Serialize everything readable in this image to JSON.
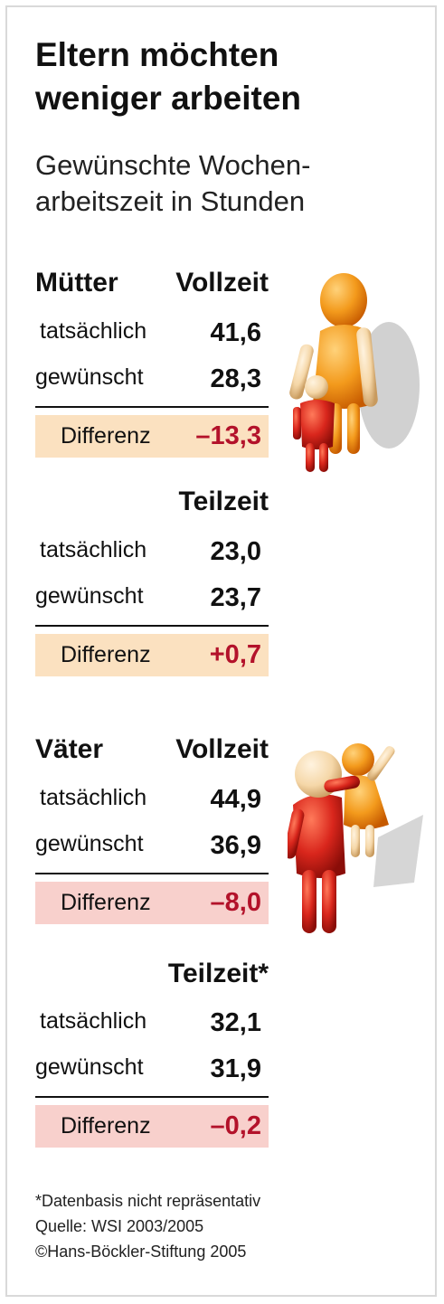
{
  "title_line1": "Eltern möchten",
  "title_line2": "weniger arbeiten",
  "subtitle_line1": "Gewünschte Wochen-",
  "subtitle_line2": "arbeitszeit in Stunden",
  "labels": {
    "actual": "tatsächlich",
    "desired": "gewünscht",
    "difference": "Differenz"
  },
  "colors": {
    "mothers_diff_bg": "#fbe1c0",
    "fathers_diff_bg": "#f8d0cc",
    "diff_text": "#b3122a",
    "figure_orange": "#f39a1c",
    "figure_red": "#d9261c",
    "figure_skin": "#f5d7a8"
  },
  "icons": [
    "mother-and-child-figure-icon",
    "father-holding-child-figure-icon"
  ],
  "chart_data": {
    "type": "table",
    "unit": "Stunden",
    "groups": [
      {
        "name": "Mütter",
        "panels": [
          {
            "name": "Vollzeit",
            "tatsaechlich": "41,6",
            "gewuenscht": "28,3",
            "differenz": "–13,3"
          },
          {
            "name": "Teilzeit",
            "tatsaechlich": "23,0",
            "gewuenscht": "23,7",
            "differenz": "+0,7"
          }
        ]
      },
      {
        "name": "Väter",
        "panels": [
          {
            "name": "Vollzeit",
            "tatsaechlich": "44,9",
            "gewuenscht": "36,9",
            "differenz": "–8,0"
          },
          {
            "name": "Teilzeit*",
            "tatsaechlich": "32,1",
            "gewuenscht": "31,9",
            "differenz": "–0,2"
          }
        ]
      }
    ]
  },
  "footnotes": {
    "note": "*Datenbasis nicht repräsentativ",
    "source": "Quelle: WSI 2003/2005",
    "copyright": "©Hans-Böckler-Stiftung 2005"
  }
}
